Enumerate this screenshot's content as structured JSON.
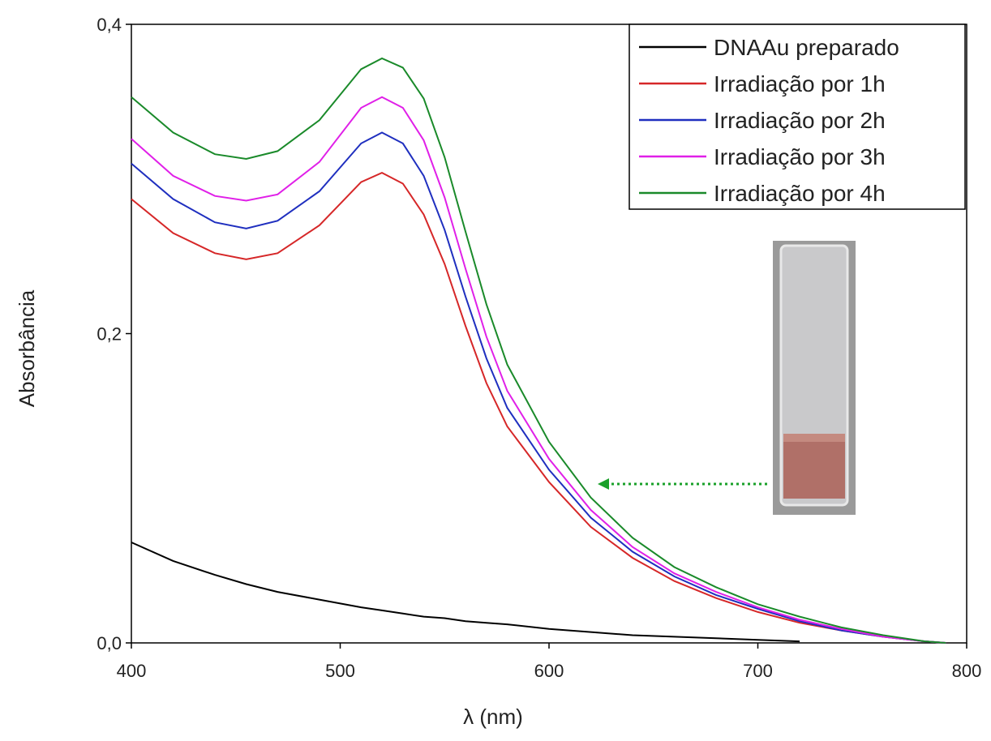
{
  "chart_data": {
    "type": "line",
    "x_label": "λ (nm)",
    "y_label": "Absorbância",
    "x": [
      400,
      420,
      440,
      455,
      470,
      490,
      510,
      520,
      530,
      540,
      550,
      560,
      570,
      580,
      600,
      620,
      640,
      660,
      680,
      700,
      720,
      740,
      760,
      780,
      790
    ],
    "series": [
      {
        "name": "DNAAu preparado",
        "color": "#000000",
        "values": [
          0.065,
          0.053,
          0.044,
          0.038,
          0.033,
          0.028,
          0.023,
          0.021,
          0.019,
          0.017,
          0.016,
          0.014,
          0.013,
          0.012,
          0.009,
          0.007,
          0.005,
          0.004,
          0.003,
          0.002,
          0.001,
          null,
          null,
          null,
          null
        ]
      },
      {
        "name": "Irradiação por 1h",
        "color": "#d62728",
        "values": [
          0.287,
          0.265,
          0.252,
          0.248,
          0.252,
          0.27,
          0.298,
          0.304,
          0.297,
          0.277,
          0.245,
          0.205,
          0.168,
          0.14,
          0.104,
          0.075,
          0.055,
          0.04,
          0.029,
          0.02,
          0.013,
          0.008,
          0.004,
          0.001,
          0
        ]
      },
      {
        "name": "Irradiação por 2h",
        "color": "#1f2fbf",
        "values": [
          0.31,
          0.287,
          0.272,
          0.268,
          0.273,
          0.292,
          0.323,
          0.33,
          0.323,
          0.302,
          0.267,
          0.224,
          0.184,
          0.152,
          0.112,
          0.081,
          0.059,
          0.043,
          0.031,
          0.022,
          0.014,
          0.008,
          0.004,
          0.001,
          0
        ]
      },
      {
        "name": "Irradiação por 3h",
        "color": "#e020e8",
        "values": [
          0.326,
          0.302,
          0.289,
          0.286,
          0.29,
          0.311,
          0.346,
          0.353,
          0.346,
          0.325,
          0.288,
          0.242,
          0.198,
          0.163,
          0.119,
          0.086,
          0.062,
          0.045,
          0.033,
          0.023,
          0.015,
          0.009,
          0.004,
          0.001,
          0
        ]
      },
      {
        "name": "Irradiação por 4h",
        "color": "#1a8a2a",
        "values": [
          0.353,
          0.33,
          0.316,
          0.313,
          0.318,
          0.338,
          0.371,
          0.378,
          0.372,
          0.352,
          0.314,
          0.266,
          0.219,
          0.18,
          0.13,
          0.094,
          0.068,
          0.049,
          0.036,
          0.025,
          0.017,
          0.01,
          0.005,
          0.001,
          0
        ]
      }
    ],
    "xlim": [
      400,
      800
    ],
    "xticks": [
      400,
      500,
      600,
      700,
      800
    ],
    "ylim": [
      0,
      0.4
    ],
    "yticks": [
      {
        "value": 0,
        "label": "0,0"
      },
      {
        "value": 0.2,
        "label": "0,2"
      },
      {
        "value": 0.4,
        "label": "0,4"
      }
    ],
    "legend": "upper right"
  }
}
